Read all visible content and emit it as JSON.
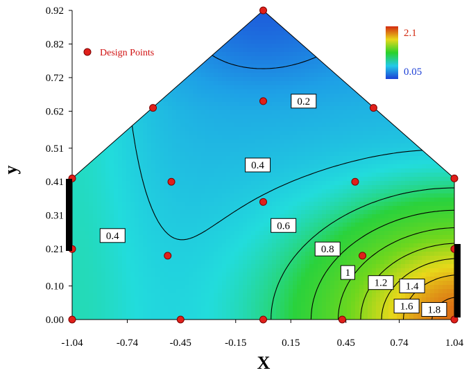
{
  "chart_data": {
    "type": "contour",
    "xlabel": "X",
    "ylabel": "y",
    "xlim": [
      -1.04,
      1.04
    ],
    "ylim": [
      0.0,
      0.92
    ],
    "x_ticks": [
      "-1.04",
      "-0.74",
      "-0.45",
      "-0.15",
      "0.15",
      "0.45",
      "0.74",
      "1.04"
    ],
    "y_ticks": [
      "0.00",
      "0.10",
      "0.21",
      "0.31",
      "0.41",
      "0.51",
      "0.62",
      "0.72",
      "0.82",
      "0.92"
    ],
    "colorbar": {
      "max_label": "2.1",
      "min_label": "0.05",
      "max_color": "#d32a10",
      "min_color": "#1c3fd6"
    },
    "legend": {
      "label": "Design Points",
      "position": "top-left",
      "marker_color": "#e0201a"
    },
    "region": [
      [
        -1.04,
        0.0
      ],
      [
        1.04,
        0.0
      ],
      [
        1.04,
        0.42
      ],
      [
        0.0,
        0.92
      ],
      [
        -1.04,
        0.42
      ]
    ],
    "contour_labels": [
      {
        "text": "0.2",
        "x": 0.22,
        "y": 0.65
      },
      {
        "text": "0.4",
        "x": -0.03,
        "y": 0.46
      },
      {
        "text": "0.4",
        "x": -0.82,
        "y": 0.25
      },
      {
        "text": "0.6",
        "x": 0.11,
        "y": 0.28
      },
      {
        "text": "0.8",
        "x": 0.35,
        "y": 0.21
      },
      {
        "text": "1",
        "x": 0.46,
        "y": 0.14
      },
      {
        "text": "1.2",
        "x": 0.64,
        "y": 0.11
      },
      {
        "text": "1.4",
        "x": 0.81,
        "y": 0.1
      },
      {
        "text": "1.6",
        "x": 0.78,
        "y": 0.04
      },
      {
        "text": "1.8",
        "x": 0.93,
        "y": 0.03
      }
    ],
    "design_points": [
      {
        "x": 0.0,
        "y": 0.92
      },
      {
        "x": -0.6,
        "y": 0.63
      },
      {
        "x": 0.6,
        "y": 0.63
      },
      {
        "x": 0.0,
        "y": 0.65
      },
      {
        "x": -1.04,
        "y": 0.42
      },
      {
        "x": 1.04,
        "y": 0.42
      },
      {
        "x": -0.5,
        "y": 0.41
      },
      {
        "x": 0.5,
        "y": 0.41
      },
      {
        "x": 0.0,
        "y": 0.35
      },
      {
        "x": -1.04,
        "y": 0.21
      },
      {
        "x": 1.04,
        "y": 0.21
      },
      {
        "x": -0.52,
        "y": 0.19
      },
      {
        "x": 0.54,
        "y": 0.19
      },
      {
        "x": -1.04,
        "y": 0.0
      },
      {
        "x": -0.45,
        "y": 0.0
      },
      {
        "x": 0.0,
        "y": 0.0
      },
      {
        "x": 0.43,
        "y": 0.0
      },
      {
        "x": 1.04,
        "y": 0.0
      }
    ]
  }
}
